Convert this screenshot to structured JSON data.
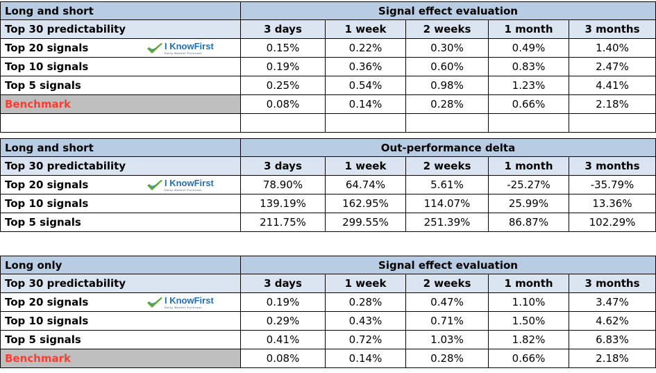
{
  "columns": [
    "3 days",
    "1 week",
    "2 weeks",
    "1 month",
    "3 months"
  ],
  "logo": {
    "text": "I KnowFirst",
    "tagline": "Daily Market Forecast"
  },
  "tables": [
    {
      "title": "Long and short",
      "section": "Signal effect evaluation",
      "subheader": "Top 30 predictability",
      "rows": [
        {
          "label": "Top 20 signals",
          "values": [
            "0.15%",
            "0.22%",
            "0.30%",
            "0.49%",
            "1.40%"
          ]
        },
        {
          "label": "Top 10 signals",
          "values": [
            "0.19%",
            "0.36%",
            "0.60%",
            "0.83%",
            "2.47%"
          ]
        },
        {
          "label": "Top 5 signals",
          "values": [
            "0.25%",
            "0.54%",
            "0.98%",
            "1.23%",
            "4.41%"
          ]
        },
        {
          "label": "Benchmark",
          "values": [
            "0.08%",
            "0.14%",
            "0.28%",
            "0.66%",
            "2.18%"
          ]
        }
      ]
    },
    {
      "title": "Long and short",
      "section": "Out-performance delta",
      "subheader": "Top 30 predictability",
      "rows": [
        {
          "label": "Top 20 signals",
          "values": [
            "78.90%",
            "64.74%",
            "5.61%",
            "-25.27%",
            "-35.79%"
          ]
        },
        {
          "label": "Top 10 signals",
          "values": [
            "139.19%",
            "162.95%",
            "114.07%",
            "25.99%",
            "13.36%"
          ]
        },
        {
          "label": "Top 5 signals",
          "values": [
            "211.75%",
            "299.55%",
            "251.39%",
            "86.87%",
            "102.29%"
          ]
        }
      ]
    },
    {
      "title": "Long only",
      "section": "Signal effect evaluation",
      "subheader": "Top 30 predictability",
      "rows": [
        {
          "label": "Top 20 signals",
          "values": [
            "0.19%",
            "0.28%",
            "0.47%",
            "1.10%",
            "3.47%"
          ]
        },
        {
          "label": "Top 10 signals",
          "values": [
            "0.29%",
            "0.43%",
            "0.71%",
            "1.50%",
            "4.62%"
          ]
        },
        {
          "label": "Top 5 signals",
          "values": [
            "0.41%",
            "0.72%",
            "1.03%",
            "1.82%",
            "6.83%"
          ]
        },
        {
          "label": "Benchmark",
          "values": [
            "0.08%",
            "0.14%",
            "0.28%",
            "0.66%",
            "2.18%"
          ]
        }
      ]
    }
  ]
}
